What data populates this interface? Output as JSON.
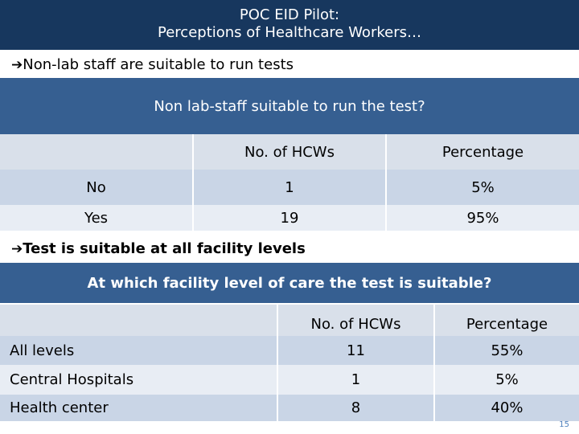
{
  "header": {
    "title_line1": "POC EID Pilot:",
    "title_line2": "Perceptions of Healthcare Workers…"
  },
  "bullet1": {
    "arrow": "➔",
    "text": "Non-lab staff are suitable to run tests"
  },
  "table1": {
    "title": "Non lab-staff suitable to run the test?",
    "headers": [
      "",
      "No. of HCWs",
      "Percentage"
    ],
    "rows": [
      [
        "No",
        "1",
        "5%"
      ],
      [
        "Yes",
        "19",
        "95%"
      ]
    ]
  },
  "bullet2": {
    "arrow": "➔",
    "text": "Test is suitable at all facility levels"
  },
  "table2": {
    "title": "At which facility level of care the test is suitable?",
    "headers": [
      "",
      "No. of HCWs",
      "Percentage"
    ],
    "rows": [
      [
        "All levels",
        "11",
        "55%"
      ],
      [
        "Central Hospitals",
        "1",
        "5%"
      ],
      [
        "Health center",
        "8",
        "40%"
      ]
    ]
  },
  "slide_number": "15"
}
